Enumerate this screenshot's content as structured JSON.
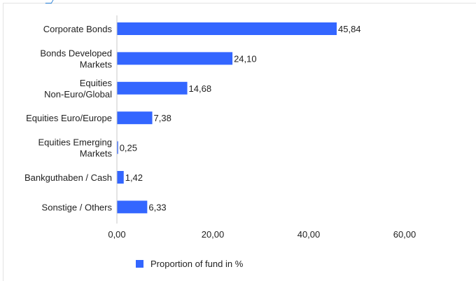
{
  "chart_data": {
    "type": "bar",
    "orientation": "horizontal",
    "categories": [
      [
        "Corporate Bonds"
      ],
      [
        "Bonds Developed",
        "Markets"
      ],
      [
        "Equities",
        "Non-Euro/Global"
      ],
      [
        "Equities Euro/Europe"
      ],
      [
        "Equities Emerging",
        "Markets"
      ],
      [
        "Bankguthaben / Cash"
      ],
      [
        "Sonstige / Others"
      ]
    ],
    "values": [
      45.84,
      24.1,
      14.68,
      7.38,
      0.25,
      1.42,
      6.33
    ],
    "value_labels": [
      "45,84",
      "24,10",
      "14,68",
      "7,38",
      "0,25",
      "1,42",
      "6,33"
    ],
    "xlim": [
      0,
      60
    ],
    "xticks": [
      0,
      20,
      40,
      60
    ],
    "xtick_labels": [
      "0,00",
      "20,00",
      "40,00",
      "60,00"
    ],
    "series": [
      {
        "name": "Proportion of fund in %",
        "color": "#3366ff"
      }
    ],
    "legend_position": "bottom",
    "grid": false
  }
}
